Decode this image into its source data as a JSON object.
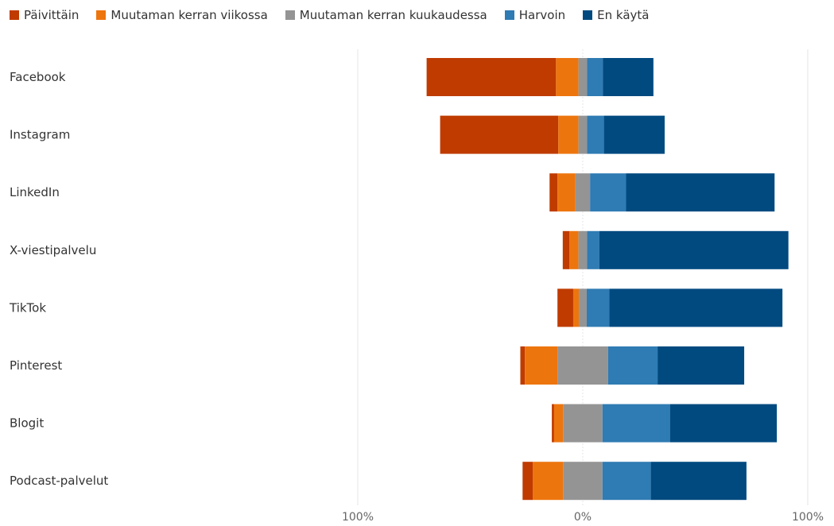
{
  "chart_data": {
    "type": "bar",
    "orientation": "horizontal",
    "stacked": true,
    "diverging": true,
    "center_ticks": [
      "100%",
      "0%",
      "100%"
    ],
    "xlim": [
      -100,
      100
    ],
    "grid": true,
    "legend_position": "top-left",
    "categories": [
      "Facebook",
      "Instagram",
      "LinkedIn",
      "X-viestipalvelu",
      "TikTok",
      "Pinterest",
      "Blogit",
      "Podcast-palvelut"
    ],
    "series": [
      {
        "name": "Päivittäin",
        "color": "#bf3b00",
        "values": [
          57.5,
          52.5,
          3.5,
          3,
          7,
          2,
          1,
          4.5
        ]
      },
      {
        "name": "Muutaman kerran viikossa",
        "color": "#ed750e",
        "values": [
          10,
          9,
          8,
          4,
          2.5,
          14.5,
          4,
          13.5
        ]
      },
      {
        "name": "Muutaman kerran kuukaudessa",
        "color": "#949494",
        "values": [
          3.8,
          3.8,
          6.5,
          3.8,
          3.5,
          22.5,
          17.5,
          17.5
        ]
      },
      {
        "name": "Harvoin",
        "color": "#2f7bb3",
        "values": [
          7,
          7.5,
          16,
          5.5,
          10,
          22,
          30,
          21.5
        ]
      },
      {
        "name": "En käytä",
        "color": "#004a80",
        "values": [
          22.5,
          27,
          66,
          84,
          77,
          38.5,
          47.5,
          42.5
        ]
      }
    ],
    "neutral_series_index": 2
  }
}
